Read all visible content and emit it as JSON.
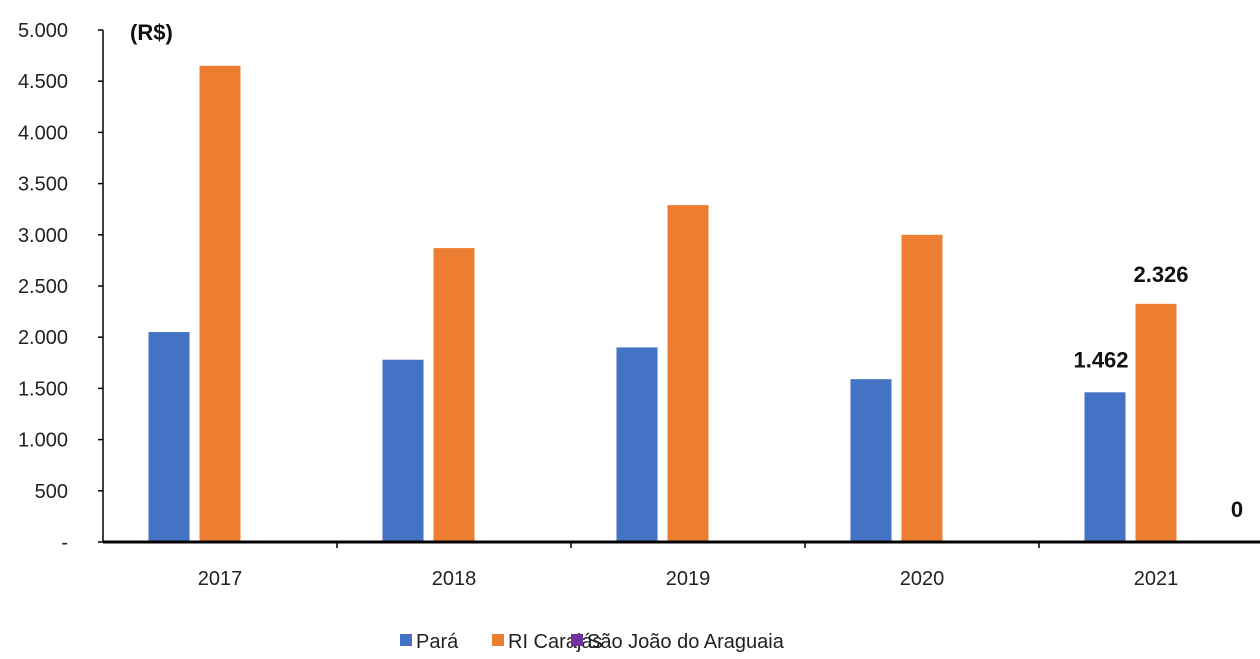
{
  "chart_data": {
    "type": "bar",
    "unit_label": "(R$)",
    "categories": [
      "2017",
      "2018",
      "2019",
      "2020",
      "2021"
    ],
    "series": [
      {
        "name": "Pará",
        "color": "#4472C4",
        "values": [
          2050,
          1780,
          1900,
          1590,
          1462
        ]
      },
      {
        "name": "RI Carajás",
        "color": "#ED7D31",
        "values": [
          4650,
          2870,
          3290,
          3000,
          2326
        ]
      },
      {
        "name": "São João do Araguaia",
        "color": "#7030A0",
        "values": [
          0,
          0,
          0,
          0,
          0
        ]
      }
    ],
    "ylim": [
      0,
      5000
    ],
    "y_ticks": [
      {
        "value": 0,
        "label": "-"
      },
      {
        "value": 500,
        "label": "500"
      },
      {
        "value": 1000,
        "label": "1.000"
      },
      {
        "value": 1500,
        "label": "1.500"
      },
      {
        "value": 2000,
        "label": "2.000"
      },
      {
        "value": 2500,
        "label": "2.500"
      },
      {
        "value": 3000,
        "label": "3.000"
      },
      {
        "value": 3500,
        "label": "3.500"
      },
      {
        "value": 4000,
        "label": "4.000"
      },
      {
        "value": 4500,
        "label": "4.500"
      },
      {
        "value": 5000,
        "label": "5.000"
      }
    ],
    "data_labels": [
      {
        "series": 0,
        "category": 4,
        "text": "1.462"
      },
      {
        "series": 1,
        "category": 4,
        "text": "2.326"
      },
      {
        "series": 2,
        "category": 4,
        "text": "0"
      }
    ],
    "grid": false,
    "legend_position": "bottom"
  }
}
